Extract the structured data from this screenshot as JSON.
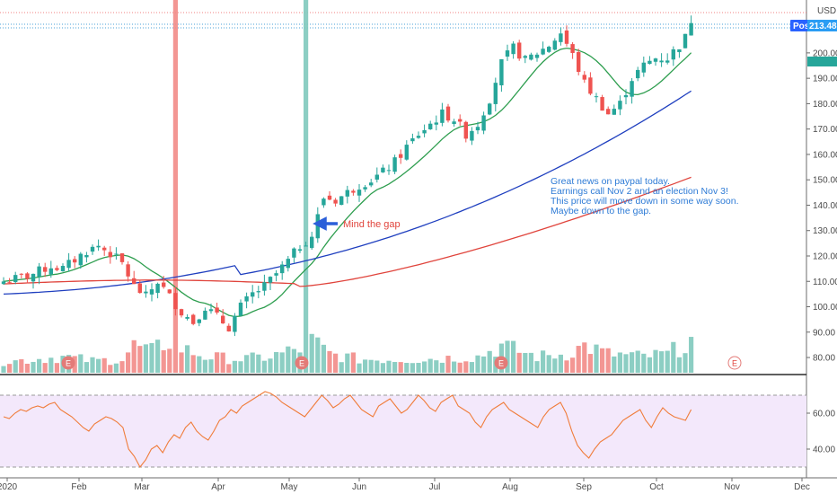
{
  "chart_data": {
    "type": "candlestick",
    "currency": "USD",
    "last_price": {
      "label": "Post",
      "value": "213.48"
    },
    "y_axis": {
      "range": [
        74,
        218
      ],
      "ticks": [
        80,
        90,
        100,
        110,
        120,
        130,
        140,
        150,
        160,
        170,
        180,
        190,
        200
      ]
    },
    "x_axis": {
      "labels": [
        "2020",
        "Feb",
        "Mar",
        "Apr",
        "May",
        "Jun",
        "Jul",
        "Aug",
        "Sep",
        "Oct",
        "Nov",
        "Dec"
      ]
    },
    "rsi": {
      "ticks": [
        40,
        60
      ],
      "band": [
        30,
        70
      ]
    },
    "annotations": {
      "note_lines": [
        "Great news on paypal today.",
        "Earnings call Nov 2 and an election Nov 3!",
        "This price will move down in some way soon.",
        "Maybe down to the gap."
      ],
      "gap_label": "Mind the gap"
    },
    "earnings_markers": [
      "E",
      "E",
      "E",
      "E"
    ],
    "anchors": [
      [
        0,
        110
      ],
      [
        4,
        112
      ],
      [
        8,
        116
      ],
      [
        10,
        115
      ],
      [
        14,
        122
      ],
      [
        16,
        124
      ],
      [
        18,
        121
      ],
      [
        20,
        117
      ],
      [
        22,
        108
      ],
      [
        24,
        104
      ],
      [
        26,
        110
      ],
      [
        28,
        104
      ],
      [
        30,
        98
      ],
      [
        32,
        94
      ],
      [
        34,
        100
      ],
      [
        36,
        96
      ],
      [
        38,
        92
      ],
      [
        40,
        100
      ],
      [
        42,
        105
      ],
      [
        44,
        108
      ],
      [
        46,
        113
      ],
      [
        48,
        118
      ],
      [
        50,
        124
      ],
      [
        52,
        128
      ],
      [
        54,
        143
      ],
      [
        56,
        142
      ],
      [
        58,
        145
      ],
      [
        60,
        148
      ],
      [
        62,
        150
      ],
      [
        64,
        153
      ],
      [
        66,
        157
      ],
      [
        68,
        163
      ],
      [
        70,
        168
      ],
      [
        72,
        172
      ],
      [
        74,
        176
      ],
      [
        76,
        174
      ],
      [
        78,
        168
      ],
      [
        80,
        172
      ],
      [
        82,
        182
      ],
      [
        84,
        196
      ],
      [
        86,
        202
      ],
      [
        88,
        197
      ],
      [
        90,
        200
      ],
      [
        92,
        203
      ],
      [
        94,
        208
      ],
      [
        96,
        199
      ],
      [
        98,
        188
      ],
      [
        100,
        182
      ],
      [
        102,
        176
      ],
      [
        104,
        180
      ],
      [
        106,
        190
      ],
      [
        108,
        195
      ],
      [
        110,
        198
      ],
      [
        112,
        198
      ],
      [
        114,
        203
      ],
      [
        115,
        206
      ],
      [
        116,
        213
      ]
    ],
    "volume_anchors": [
      [
        0,
        2
      ],
      [
        5,
        2.5
      ],
      [
        10,
        3
      ],
      [
        15,
        2.2
      ],
      [
        20,
        2.5
      ],
      [
        22,
        5
      ],
      [
        25,
        4
      ],
      [
        28,
        6
      ],
      [
        30,
        4.5
      ],
      [
        34,
        3
      ],
      [
        40,
        2.5
      ],
      [
        45,
        3
      ],
      [
        50,
        4.5
      ],
      [
        52,
        6
      ],
      [
        55,
        3.5
      ],
      [
        60,
        2.5
      ],
      [
        70,
        2.5
      ],
      [
        80,
        3
      ],
      [
        84,
        5
      ],
      [
        90,
        3
      ],
      [
        95,
        3.5
      ],
      [
        98,
        5
      ],
      [
        102,
        3.5
      ],
      [
        108,
        3
      ],
      [
        112,
        3.5
      ],
      [
        116,
        6
      ]
    ],
    "volume_spikes": [
      [
        29,
        17
      ],
      [
        51,
        13
      ]
    ],
    "rsi_values": [
      58,
      57,
      60,
      62,
      61,
      63,
      64,
      63,
      65,
      66,
      62,
      60,
      58,
      55,
      52,
      50,
      54,
      56,
      58,
      57,
      55,
      52,
      40,
      36,
      30,
      34,
      40,
      42,
      38,
      44,
      48,
      46,
      52,
      55,
      50,
      47,
      45,
      50,
      56,
      58,
      62,
      60,
      64,
      66,
      68,
      70,
      72,
      71,
      69,
      66,
      64,
      62,
      60,
      58,
      62,
      66,
      70,
      67,
      63,
      65,
      68,
      70,
      66,
      62,
      60,
      58,
      64,
      66,
      68,
      64,
      60,
      62,
      66,
      70,
      67,
      63,
      61,
      66,
      68,
      70,
      64,
      62,
      60,
      55,
      52,
      58,
      62,
      64,
      66,
      62,
      60,
      58,
      56,
      54,
      52,
      58,
      62,
      64,
      66,
      60,
      50,
      42,
      38,
      35,
      40,
      44,
      46,
      48,
      52,
      56,
      58,
      60,
      62,
      56,
      52,
      58,
      63,
      60,
      58,
      57,
      56,
      62
    ]
  }
}
